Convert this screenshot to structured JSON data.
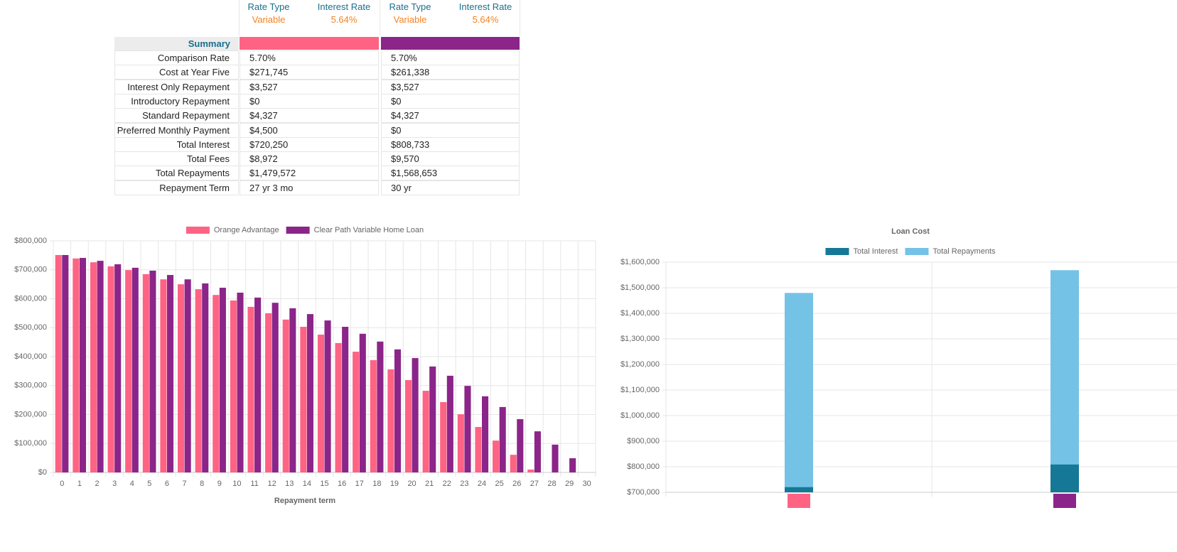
{
  "header": {
    "loans": [
      {
        "rate_type_label": "Rate Type",
        "interest_rate_label": "Interest Rate",
        "rate_type": "Variable",
        "interest_rate": "5.64%",
        "color": "#ff6384"
      },
      {
        "rate_type_label": "Rate Type",
        "interest_rate_label": "Interest Rate",
        "rate_type": "Variable",
        "interest_rate": "5.64%",
        "color": "#8b2589"
      }
    ]
  },
  "table": {
    "summary_label": "Summary",
    "rows": [
      [
        "Comparison Rate",
        "5.70%",
        "5.70%"
      ],
      [
        "Cost at Year Five",
        "$271,745",
        "$261,338"
      ],
      [
        "Interest Only Repayment",
        "$3,527",
        "$3,527"
      ],
      [
        "Introductory Repayment",
        "$0",
        "$0"
      ],
      [
        "Standard Repayment",
        "$4,327",
        "$4,327"
      ],
      [
        "Preferred Monthly Payment",
        "$4,500",
        "$0"
      ],
      [
        "Total Interest",
        "$720,250",
        "$808,733"
      ],
      [
        "Total Fees",
        "$8,972",
        "$9,570"
      ],
      [
        "Total Repayments",
        "$1,479,572",
        "$1,568,653"
      ],
      [
        "Repayment Term",
        "27 yr 3 mo",
        "30 yr"
      ]
    ]
  },
  "chart_data": [
    {
      "type": "bar",
      "bar_mode": "grouped",
      "x_label": "Repayment term",
      "categories": [
        0,
        1,
        2,
        3,
        4,
        5,
        6,
        7,
        8,
        9,
        10,
        11,
        12,
        13,
        14,
        15,
        16,
        17,
        18,
        19,
        20,
        21,
        22,
        23,
        24,
        25,
        26,
        27,
        28,
        29,
        30
      ],
      "series": [
        {
          "name": "Orange Advantage",
          "color": "#ff6384",
          "values": [
            751000,
            739000,
            726000,
            712000,
            699000,
            685000,
            667000,
            650000,
            633000,
            613000,
            594000,
            572000,
            550000,
            528000,
            503000,
            476000,
            447000,
            417000,
            388000,
            356000,
            319000,
            282000,
            243000,
            201000,
            157000,
            110000,
            61000,
            10000,
            0,
            0,
            0
          ]
        },
        {
          "name": "Clear Path Variable Home Loan",
          "color": "#8b2589",
          "values": [
            751000,
            741000,
            731000,
            719000,
            707000,
            697000,
            682000,
            667000,
            653000,
            638000,
            621000,
            604000,
            586000,
            567000,
            547000,
            525000,
            503000,
            479000,
            452000,
            425000,
            395000,
            366000,
            334000,
            299000,
            263000,
            226000,
            184000,
            142000,
            96000,
            49000,
            0
          ]
        }
      ],
      "ylim": [
        0,
        800000
      ],
      "yticks": [
        {
          "value": 0,
          "label": "$0"
        },
        {
          "value": 100000,
          "label": "$100,000"
        },
        {
          "value": 200000,
          "label": "$200,000"
        },
        {
          "value": 300000,
          "label": "$300,000"
        },
        {
          "value": 400000,
          "label": "$400,000"
        },
        {
          "value": 500000,
          "label": "$500,000"
        },
        {
          "value": 600000,
          "label": "$600,000"
        },
        {
          "value": 700000,
          "label": "$700,000"
        },
        {
          "value": 800000,
          "label": "$800,000"
        }
      ],
      "grid": true,
      "legend": "top"
    },
    {
      "type": "bar",
      "bar_mode": "overlay",
      "title": "Loan Cost",
      "categories": [
        null,
        null
      ],
      "category_colors": [
        "#ff6384",
        "#8b2589"
      ],
      "series": [
        {
          "name": "Total Interest",
          "color": "#157896",
          "values": [
            720250,
            808733
          ]
        },
        {
          "name": "Total Repayments",
          "color": "#74c2e6",
          "values": [
            1479572,
            1568653
          ]
        }
      ],
      "ylim": [
        700000,
        1600000
      ],
      "yticks": [
        {
          "value": 700000,
          "label": "$700,000"
        },
        {
          "value": 800000,
          "label": "$800,000"
        },
        {
          "value": 900000,
          "label": "$900,000"
        },
        {
          "value": 1000000,
          "label": "$1,000,000"
        },
        {
          "value": 1100000,
          "label": "$1,100,000"
        },
        {
          "value": 1200000,
          "label": "$1,200,000"
        },
        {
          "value": 1300000,
          "label": "$1,300,000"
        },
        {
          "value": 1400000,
          "label": "$1,400,000"
        },
        {
          "value": 1500000,
          "label": "$1,500,000"
        },
        {
          "value": 1600000,
          "label": "$1,600,000"
        }
      ],
      "grid": true,
      "legend": "top"
    }
  ]
}
